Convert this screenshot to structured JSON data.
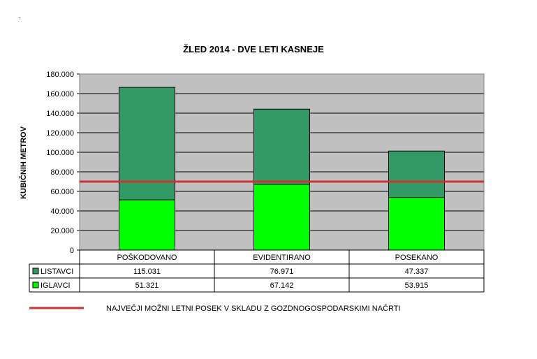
{
  "chart_data": {
    "type": "bar",
    "stacked": true,
    "title": "ŽLED 2014 - DVE LETI KASNEJE",
    "ylabel": "KUBIČNIH METROV",
    "xlabel": "",
    "ylim": [
      0,
      180000
    ],
    "yticks": [
      "0",
      "20.000",
      "40.000",
      "60.000",
      "80.000",
      "100.000",
      "120.000",
      "140.000",
      "160.000",
      "180.000"
    ],
    "categories": [
      "POŠKODOVANO",
      "EVIDENTIRANO",
      "POSEKANO"
    ],
    "series": [
      {
        "name": "IGLAVCI",
        "values": [
          51321,
          67142,
          53915
        ],
        "labels": [
          "51.321",
          "67.142",
          "53.915"
        ],
        "color": "#00ff00"
      },
      {
        "name": "LISTAVCI",
        "values": [
          115031,
          76971,
          47337
        ],
        "labels": [
          "115.031",
          "76.971",
          "47.337"
        ],
        "color": "#339966"
      }
    ],
    "table_row_order": [
      "LISTAVCI",
      "IGLAVCI"
    ],
    "reference_line": {
      "value": 70000,
      "label": "NAJVEČJI MOŽNI LETNI POSEK V SKLADU Z GOZDNOGOSPODARSKIMI NAČRTI",
      "color": "#cc3333"
    },
    "grid": true,
    "plot_background": "#c0c0c0",
    "legend_placement": "bottom"
  }
}
